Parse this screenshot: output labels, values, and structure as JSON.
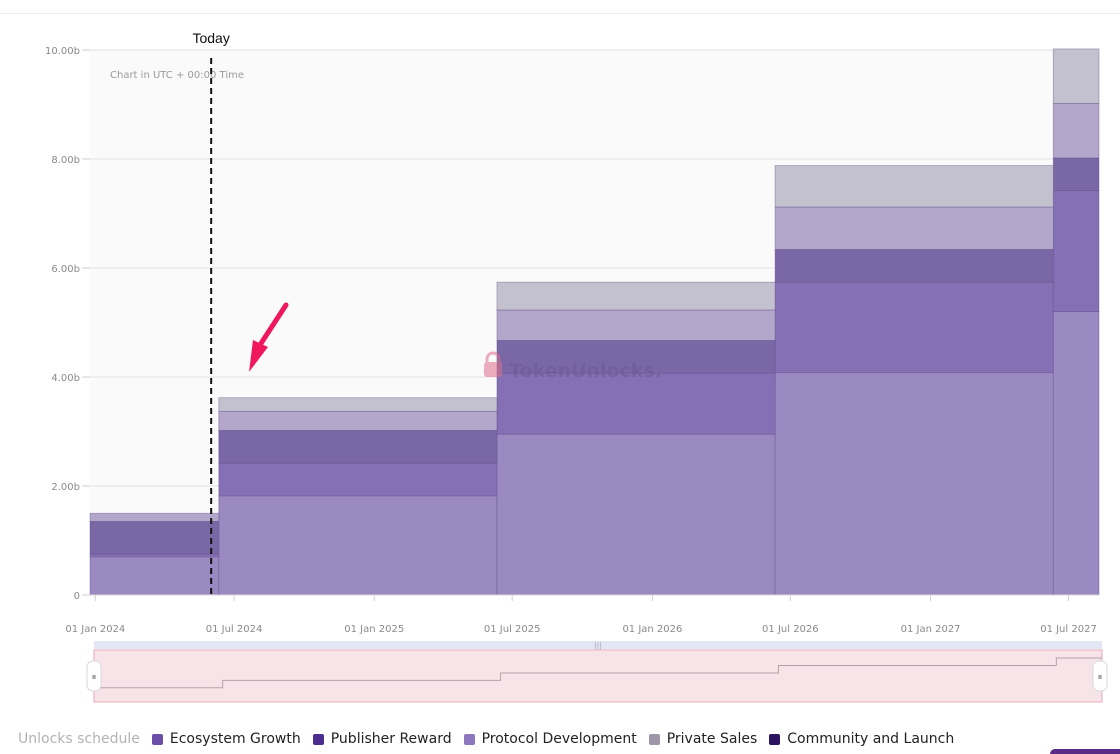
{
  "chart_data": {
    "type": "area",
    "stepped": true,
    "stacked": true,
    "x_tick_labels": [
      "01 Jan 2024",
      "01 Jul 2024",
      "01 Jan 2025",
      "01 Jul 2025",
      "01 Jan 2026",
      "01 Jul 2026",
      "01 Jan 2027",
      "01 Jul 2027"
    ],
    "x_tick_dates": [
      "2024-01-01",
      "2024-07-01",
      "2025-01-01",
      "2025-07-01",
      "2026-01-01",
      "2026-07-01",
      "2027-01-01",
      "2027-07-01"
    ],
    "x_range": [
      "2023-12-25",
      "2027-08-10"
    ],
    "y_tick_labels": [
      "0",
      "2.00b",
      "4.00b",
      "6.00b",
      "8.00b",
      "10.00b"
    ],
    "y_ticks": [
      0,
      2,
      4,
      6,
      8,
      10
    ],
    "ylim": [
      0,
      10
    ],
    "y_unit": "b",
    "grid": true,
    "step_dates": [
      "2023-12-25",
      "2024-06-11",
      "2025-06-11",
      "2026-06-11",
      "2027-06-11",
      "2027-08-10"
    ],
    "series": [
      {
        "name": "Protocol Development",
        "color": "#9b89c2",
        "values": [
          0.7,
          1.82,
          2.95,
          4.08,
          5.2
        ]
      },
      {
        "name": "Ecosystem Growth",
        "color": "#8670b5",
        "values": [
          0.05,
          0.6,
          1.12,
          1.66,
          2.22
        ]
      },
      {
        "name": "Publisher Reward",
        "color": "#7a67a6",
        "values": [
          0.6,
          0.6,
          0.6,
          0.6,
          0.6
        ]
      },
      {
        "name": "Private Sales",
        "color": "#b2a7cb",
        "values": [
          0.15,
          0.35,
          0.56,
          0.78,
          1.0
        ]
      },
      {
        "name": "Community and Launch",
        "color": "#c3c1cd",
        "values": [
          0.0,
          0.25,
          0.51,
          0.76,
          1.0
        ]
      }
    ],
    "today_date": "2024-06-01",
    "today_label": "Today",
    "annotation": "Chart in UTC + 00:00 Time",
    "watermark": "TokenUnlocks.",
    "arrow_color": "#f0185c"
  },
  "navigator": {
    "fill_color": "#f7e4e9",
    "handle_left": "⏸",
    "handle_right": "⏸"
  },
  "legend": {
    "title": "Unlocks schedule",
    "items": [
      {
        "label": "Ecosystem Growth",
        "color": "#6a4ea8"
      },
      {
        "label": "Publisher Reward",
        "color": "#4b2e8f"
      },
      {
        "label": "Protocol Development",
        "color": "#8d77bf"
      },
      {
        "label": "Private Sales",
        "color": "#9d97a8"
      },
      {
        "label": "Community and Launch",
        "color": "#2a1460"
      }
    ]
  }
}
